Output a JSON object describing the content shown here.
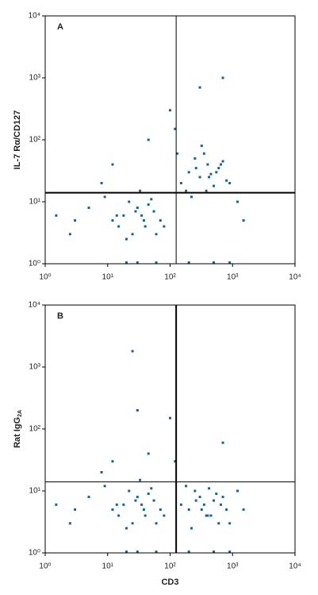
{
  "chart_data": [
    {
      "type": "scatter",
      "panel_label": "A",
      "ylabel": "IL-7 Rα/CD127",
      "xscale": "log",
      "yscale": "log",
      "color": "#1a6688",
      "xlim": [
        1,
        10000
      ],
      "ylim": [
        1,
        10000
      ],
      "xticks": [
        {
          "value": 1,
          "label": "10⁰"
        },
        {
          "value": 10,
          "label": "10¹"
        },
        {
          "value": 100,
          "label": "10²"
        },
        {
          "value": 1000,
          "label": "10³"
        },
        {
          "value": 10000,
          "label": "10⁴"
        }
      ],
      "yticks": [
        {
          "value": 1,
          "label": "10⁰"
        },
        {
          "value": 10,
          "label": "10¹"
        },
        {
          "value": 100,
          "label": "10²"
        },
        {
          "value": 1000,
          "label": "10³"
        },
        {
          "value": 10000,
          "label": "10⁴"
        }
      ],
      "quadrant_x": 125,
      "quadrant_y": 14,
      "x": [
        12,
        18,
        25,
        30,
        40,
        55,
        70,
        22,
        35,
        15,
        9,
        45,
        60,
        28,
        33,
        20,
        14,
        50,
        80,
        38,
        150,
        200,
        300,
        400,
        500,
        600,
        800,
        250,
        350,
        450,
        700,
        180,
        220,
        320,
        550,
        900,
        260,
        420,
        380,
        650,
        5,
        3,
        8,
        100,
        120,
        130,
        1.5,
        2.5,
        1200,
        1500,
        30,
        60,
        200,
        500,
        900,
        20,
        45,
        300,
        700,
        12
      ],
      "y": [
        5,
        6,
        3,
        8,
        4,
        7,
        5,
        10,
        6,
        4,
        12,
        9,
        3,
        7,
        15,
        2.5,
        6,
        11,
        4,
        5,
        20,
        30,
        25,
        40,
        18,
        35,
        22,
        50,
        60,
        28,
        45,
        15,
        12,
        80,
        30,
        20,
        35,
        25,
        15,
        40,
        8,
        5,
        20,
        300,
        150,
        60,
        6,
        3,
        10,
        5,
        1,
        1,
        1,
        1,
        1,
        1,
        100,
        700,
        1000,
        40
      ]
    },
    {
      "type": "scatter",
      "panel_label": "B",
      "ylabel": "Rat IgG",
      "ylabel_sub": "2A",
      "xlabel": "CD3",
      "xscale": "log",
      "yscale": "log",
      "color": "#1a6688",
      "xlim": [
        1,
        10000
      ],
      "ylim": [
        1,
        10000
      ],
      "xticks": [
        {
          "value": 1,
          "label": "10⁰"
        },
        {
          "value": 10,
          "label": "10¹"
        },
        {
          "value": 100,
          "label": "10²"
        },
        {
          "value": 1000,
          "label": "10³"
        },
        {
          "value": 10000,
          "label": "10⁴"
        }
      ],
      "yticks": [
        {
          "value": 1,
          "label": "10⁰"
        },
        {
          "value": 10,
          "label": "10¹"
        },
        {
          "value": 100,
          "label": "10²"
        },
        {
          "value": 1000,
          "label": "10³"
        },
        {
          "value": 10000,
          "label": "10⁴"
        }
      ],
      "quadrant_x": 125,
      "quadrant_y": 14,
      "x": [
        12,
        18,
        25,
        30,
        40,
        55,
        70,
        22,
        35,
        15,
        9,
        45,
        60,
        28,
        33,
        20,
        14,
        50,
        80,
        38,
        150,
        200,
        300,
        400,
        500,
        600,
        800,
        250,
        350,
        450,
        700,
        180,
        220,
        320,
        550,
        900,
        260,
        420,
        380,
        650,
        5,
        3,
        8,
        100,
        120,
        30,
        1.5,
        2.5,
        1200,
        1500,
        30,
        60,
        200,
        500,
        900,
        20,
        45,
        25,
        700,
        12
      ],
      "y": [
        5,
        6,
        3,
        8,
        4,
        7,
        5,
        10,
        6,
        4,
        12,
        9,
        3,
        7,
        15,
        2.5,
        6,
        11,
        4,
        5,
        6,
        5,
        8,
        4,
        7,
        3,
        5,
        10,
        6,
        4,
        8,
        12,
        2.5,
        5,
        9,
        3,
        7,
        11,
        4,
        6,
        8,
        5,
        20,
        150,
        30,
        200,
        6,
        3,
        10,
        5,
        1,
        1,
        1,
        1,
        1,
        1,
        40,
        1800,
        60,
        30
      ]
    }
  ]
}
